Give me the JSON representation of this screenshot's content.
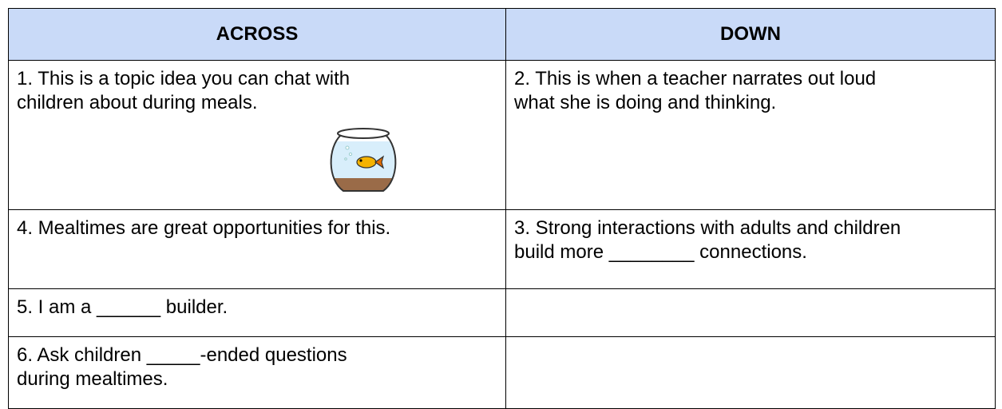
{
  "table": {
    "header": [
      "ACROSS",
      "DOWN"
    ],
    "rows": [
      [
        {
          "lines": [
            "1. This is a topic idea you can chat with",
            "children about during meals."
          ]
        },
        {
          "lines": [
            "2. This is when a teacher narrates out loud",
            "what she is doing and thinking."
          ]
        }
      ],
      [
        {
          "lines": [
            "4. Mealtimes are great opportunities for this."
          ]
        },
        {
          "lines": [
            "3. Strong interactions with adults and children",
            "build more ________ connections."
          ]
        }
      ],
      [
        {
          "lines": [
            "5. I am a ______ builder."
          ]
        },
        null
      ],
      [
        {
          "lines": [
            "6. Ask children _____-ended questions",
            "during mealtimes."
          ]
        },
        null
      ]
    ]
  }
}
